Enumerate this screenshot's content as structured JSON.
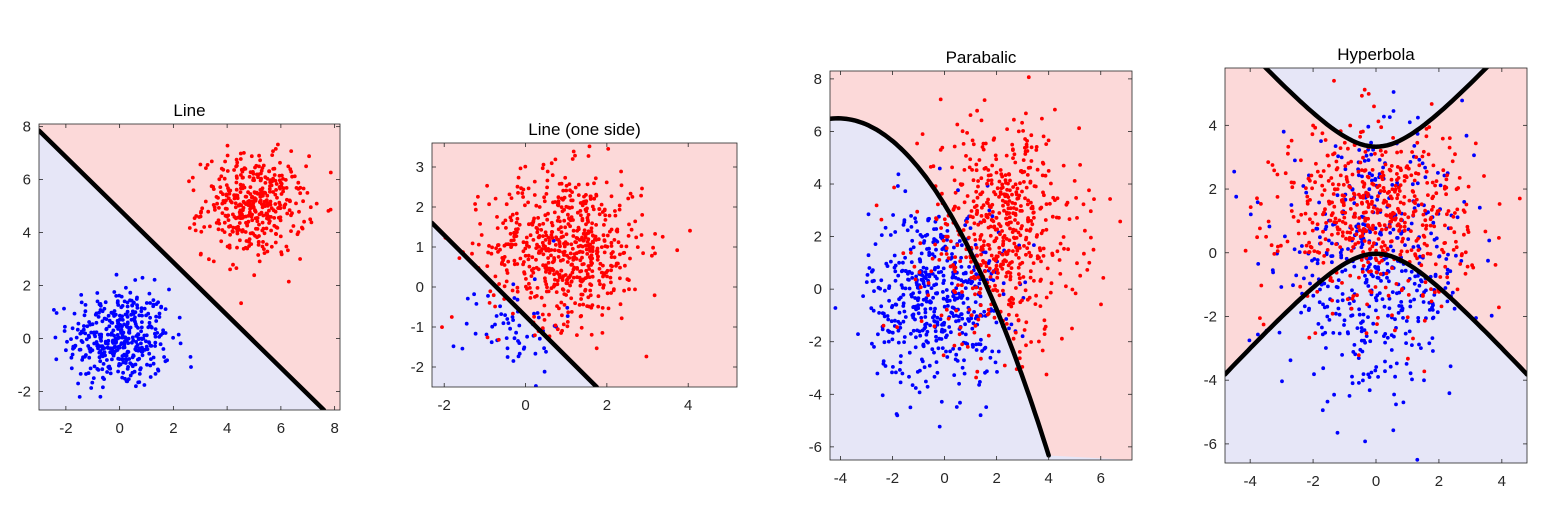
{
  "chart_data": [
    {
      "type": "scatter",
      "title": "Line",
      "xlim": [
        -3,
        8.2
      ],
      "ylim": [
        -2.7,
        8.1
      ],
      "xticks": [
        -2,
        0,
        2,
        4,
        6,
        8
      ],
      "yticks": [
        -2,
        0,
        2,
        4,
        6,
        8
      ],
      "region_colors": {
        "class_a": "#e6e6f7",
        "class_b": "#fcd9d9"
      },
      "boundary": {
        "kind": "line",
        "points": [
          [
            -3,
            7.85
          ],
          [
            7.6,
            -2.7
          ]
        ],
        "color": "#000000"
      },
      "series": [
        {
          "color": "#0000ff",
          "count": 420,
          "center": [
            0,
            0
          ],
          "spread": [
            0.95,
            0.95
          ]
        },
        {
          "color": "#ff0000",
          "count": 420,
          "center": [
            5,
            5
          ],
          "spread": [
            0.95,
            0.95
          ]
        }
      ],
      "grid": false
    },
    {
      "type": "scatter",
      "title": "Line (one side)",
      "xlim": [
        -2.3,
        5.2
      ],
      "ylim": [
        -2.5,
        3.6
      ],
      "xticks": [
        -2,
        0,
        2,
        4
      ],
      "yticks": [
        -2,
        -1,
        0,
        1,
        2,
        3
      ],
      "region_colors": {
        "class_a": "#e6e6f7",
        "class_b": "#fcd9d9"
      },
      "boundary": {
        "kind": "line",
        "points": [
          [
            -2.3,
            1.6
          ],
          [
            1.75,
            -2.5
          ]
        ],
        "color": "#000000"
      },
      "series": [
        {
          "color": "#0000ff",
          "count": 60,
          "center": [
            -0.3,
            -0.9
          ],
          "spread": [
            0.6,
            0.6
          ]
        },
        {
          "color": "#ff0000",
          "count": 650,
          "center": [
            1,
            1
          ],
          "spread": [
            0.95,
            0.95
          ]
        }
      ],
      "grid": false
    },
    {
      "type": "scatter",
      "title": "Parabalic",
      "xlim": [
        -4.4,
        7.2
      ],
      "ylim": [
        -6.5,
        8.3
      ],
      "xticks": [
        -4,
        -2,
        0,
        2,
        4,
        6
      ],
      "yticks": [
        -6,
        -4,
        -2,
        0,
        2,
        4,
        6,
        8
      ],
      "region_colors": {
        "class_a": "#e6e6f7",
        "class_b": "#fcd9d9"
      },
      "boundary": {
        "kind": "parabola",
        "vertex": [
          -4.1,
          6.5
        ],
        "a": -0.1955,
        "x_range": [
          -4.4,
          4.0
        ],
        "color": "#000000"
      },
      "series": [
        {
          "color": "#0000ff",
          "count": 520,
          "center": [
            -0.3,
            -0.3
          ],
          "spread": [
            1.3,
            1.7
          ]
        },
        {
          "color": "#ff0000",
          "count": 600,
          "center": [
            2.2,
            2.2
          ],
          "spread": [
            1.5,
            2.1
          ]
        }
      ],
      "grid": false
    },
    {
      "type": "scatter",
      "title": "Hyperbola",
      "xlim": [
        -4.8,
        4.8
      ],
      "ylim": [
        -6.6,
        5.8
      ],
      "xticks": [
        -4,
        -2,
        0,
        2,
        4
      ],
      "yticks": [
        -6,
        -4,
        -2,
        0,
        2,
        4
      ],
      "region_colors": {
        "class_a": "#e6e6f7",
        "class_b": "#fcd9d9"
      },
      "boundary": {
        "kind": "hyperbola",
        "center": [
          0,
          1.65
        ],
        "a": 1.68,
        "b": 1.55,
        "color": "#000000"
      },
      "series": [
        {
          "color": "#0000ff",
          "count": 480,
          "center": [
            0,
            -0.6
          ],
          "spread": [
            1.5,
            1.9
          ]
        },
        {
          "color": "#ff0000",
          "count": 560,
          "center": [
            0,
            1.2
          ],
          "spread": [
            1.5,
            1.4
          ]
        }
      ],
      "grid": false
    }
  ]
}
